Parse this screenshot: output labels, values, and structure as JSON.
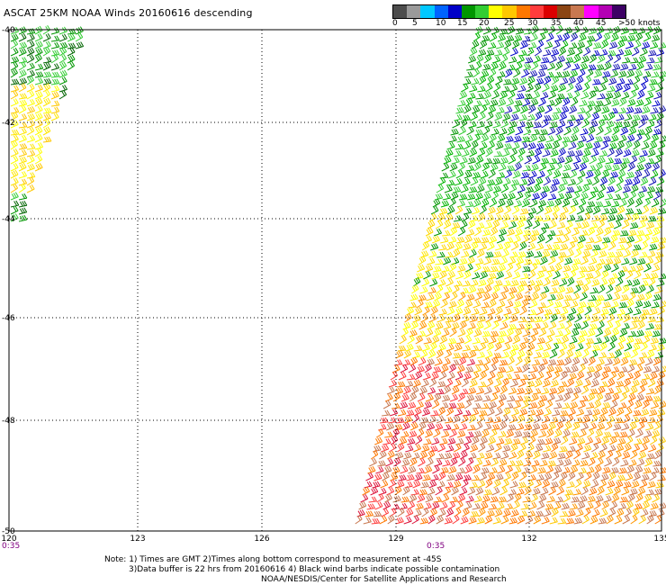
{
  "title": "ASCAT 25KM NOAA Winds 20160616 descending",
  "legend": {
    "colors": [
      "#4d4d4d",
      "#9a9a9a",
      "#00c8ff",
      "#0064ff",
      "#0000c8",
      "#009600",
      "#32cd32",
      "#ffff00",
      "#ffc800",
      "#ff7800",
      "#ff3c3c",
      "#dc0000",
      "#8b4513",
      "#c87850",
      "#ff00ff",
      "#b400b4",
      "#3c0064"
    ],
    "labels": [
      "0",
      "5",
      "10",
      "15",
      "20",
      "25",
      "30",
      "35",
      "40",
      "45",
      ">50 knots"
    ]
  },
  "axes": {
    "x_ticks": [
      "120",
      "123",
      "126",
      "129",
      "132",
      "135"
    ],
    "y_ticks": [
      "-40",
      "-42",
      "-44",
      "-46",
      "-48",
      "-50"
    ],
    "time_labels": [
      "0:35",
      "0:35"
    ]
  },
  "wind_regions": [
    {
      "name": "west swath",
      "speed_knots": "15-25",
      "colors": [
        "#009600",
        "#ffff00"
      ]
    },
    {
      "name": "east swath north",
      "speed_knots": "15-20",
      "colors": [
        "#009600",
        "#0000c8"
      ]
    },
    {
      "name": "east swath middle",
      "speed_knots": "20-25",
      "colors": [
        "#ffff00",
        "#ffc800"
      ]
    },
    {
      "name": "east swath south",
      "speed_knots": "25-35",
      "colors": [
        "#ff7800",
        "#dc0000",
        "#c87850"
      ]
    }
  ],
  "notes": {
    "line1": "Note: 1) Times are GMT 2)Times along bottom correspond to measurement at -45S",
    "line2": "3)Data buffer is 22 hrs from 20160616 4) Black wind barbs indicate possible contamination",
    "line3": "NOAA/NESDIS/Center for Satellite Applications and Research"
  }
}
